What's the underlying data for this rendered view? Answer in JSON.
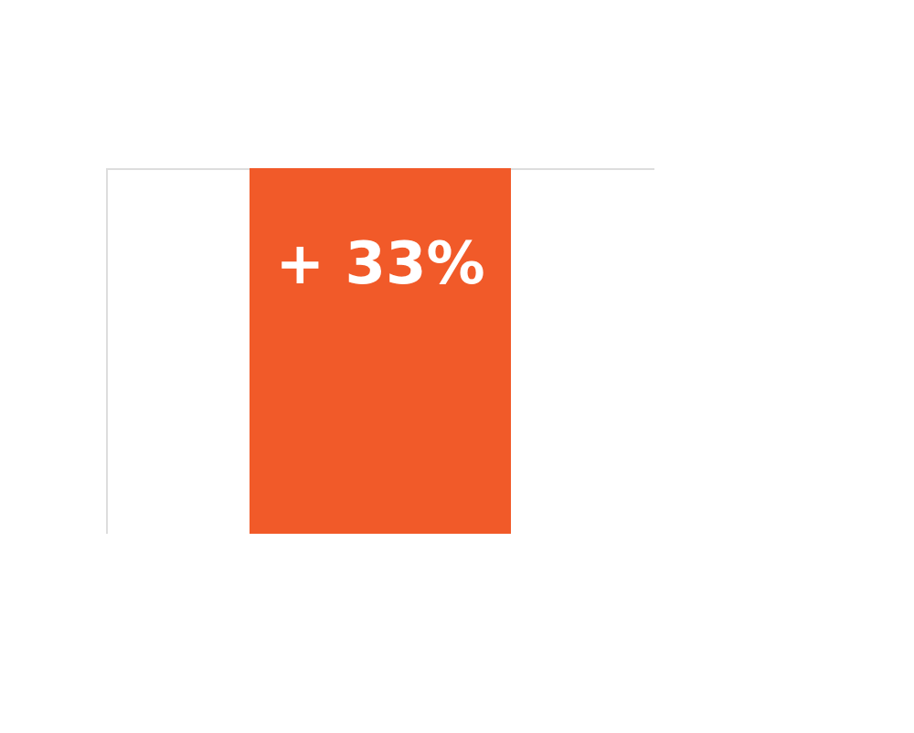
{
  "chart_data": {
    "type": "bar",
    "categories": [
      null
    ],
    "ylim": [
      0,
      33
    ],
    "tick_labels": false,
    "series": [
      {
        "color": "#f15a29",
        "values": [
          33
        ],
        "value_labels": [
          "+ 33%"
        ]
      }
    ]
  }
}
